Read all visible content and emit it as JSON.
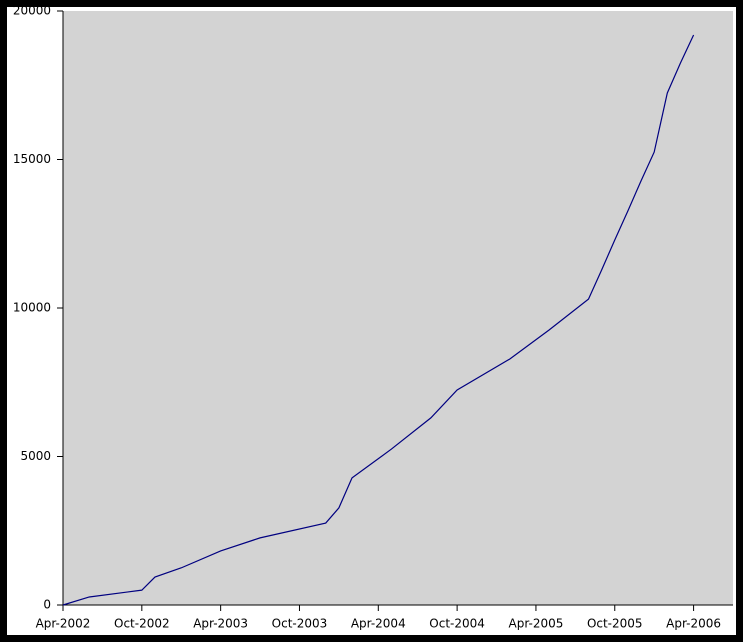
{
  "chart_data": {
    "type": "line",
    "x": [
      "2002-04",
      "2002-06",
      "2002-10",
      "2002-11",
      "2003-01",
      "2003-04",
      "2003-07",
      "2003-12",
      "2004-01",
      "2004-02",
      "2004-05",
      "2004-08",
      "2004-10",
      "2005-02",
      "2005-05",
      "2005-08",
      "2005-09",
      "2005-10",
      "2005-11",
      "2005-12",
      "2006-01",
      "2006-02",
      "2006-03",
      "2006-04"
    ],
    "series": [
      {
        "color": "#000080",
        "values": [
          0,
          270,
          500,
          940,
          1250,
          1820,
          2260,
          2760,
          3270,
          4280,
          5250,
          6300,
          7240,
          8280,
          9260,
          10300,
          11280,
          12290,
          13270,
          14280,
          15250,
          17240,
          18250,
          19190
        ]
      }
    ],
    "xlim": [
      "2002-04",
      "2006-07"
    ],
    "xticks": [
      {
        "value": "2002-04",
        "label": "Apr-2002"
      },
      {
        "value": "2002-10",
        "label": "Oct-2002"
      },
      {
        "value": "2003-04",
        "label": "Apr-2003"
      },
      {
        "value": "2003-10",
        "label": "Oct-2003"
      },
      {
        "value": "2004-04",
        "label": "Apr-2004"
      },
      {
        "value": "2004-10",
        "label": "Oct-2004"
      },
      {
        "value": "2005-04",
        "label": "Apr-2005"
      },
      {
        "value": "2005-10",
        "label": "Oct-2005"
      },
      {
        "value": "2006-04",
        "label": "Apr-2006"
      }
    ],
    "ylim": [
      0,
      20000
    ],
    "yticks": [
      0,
      5000,
      10000,
      15000,
      20000
    ],
    "plot_background": "#d3d3d3"
  }
}
